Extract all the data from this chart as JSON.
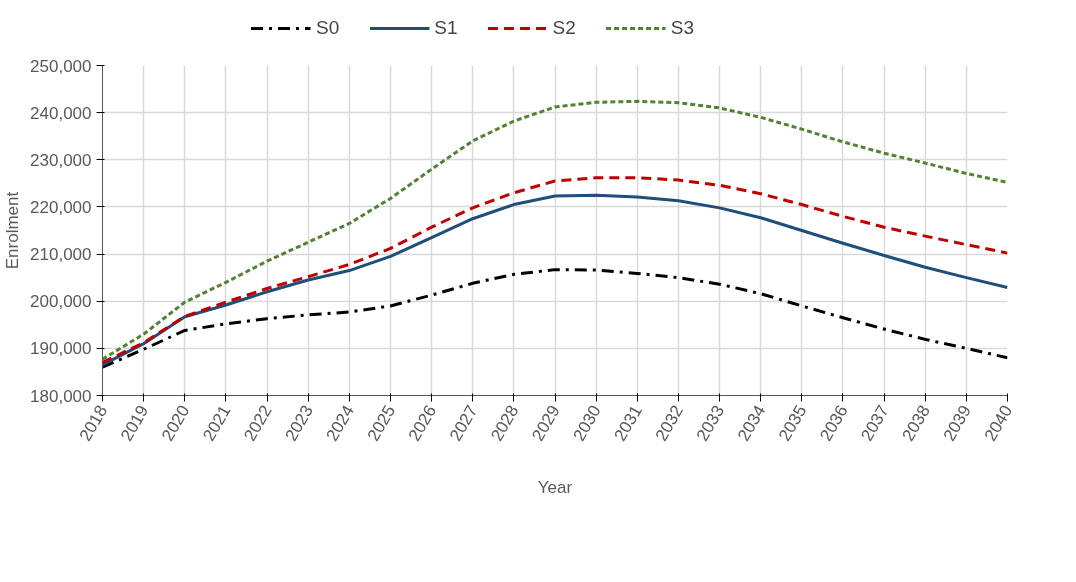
{
  "chart_data": {
    "type": "line",
    "xlabel": "Year",
    "ylabel": "Enrolment",
    "x": [
      2018,
      2019,
      2020,
      2021,
      2022,
      2023,
      2024,
      2025,
      2026,
      2027,
      2028,
      2029,
      2030,
      2031,
      2032,
      2033,
      2034,
      2035,
      2036,
      2037,
      2038,
      2039,
      2040
    ],
    "series": [
      {
        "name": "S0",
        "color": "#000000",
        "line_style": "dashdot",
        "values": [
          186000,
          189800,
          193800,
          195200,
          196300,
          197100,
          197700,
          199000,
          201300,
          203800,
          205700,
          206700,
          206600,
          205900,
          205000,
          203600,
          201600,
          199000,
          196500,
          194100,
          191900,
          190000,
          188000
        ]
      },
      {
        "name": "S1",
        "color": "#1f4e79",
        "line_style": "solid",
        "values": [
          186500,
          191000,
          196700,
          199200,
          202000,
          204500,
          206500,
          209500,
          213500,
          217500,
          220500,
          222300,
          222500,
          222100,
          221300,
          219800,
          217700,
          215000,
          212300,
          209700,
          207200,
          205000,
          202900
        ]
      },
      {
        "name": "S2",
        "color": "#c00000",
        "line_style": "dashed",
        "values": [
          187000,
          191200,
          196800,
          199800,
          202700,
          205200,
          207800,
          211200,
          215700,
          219800,
          223000,
          225500,
          226200,
          226200,
          225700,
          224600,
          222800,
          220500,
          218000,
          215700,
          213800,
          212000,
          210200
        ]
      },
      {
        "name": "S3",
        "color": "#548235",
        "line_style": "dotted",
        "values": [
          187700,
          193000,
          199800,
          204000,
          208500,
          212500,
          216500,
          221800,
          228000,
          234000,
          238200,
          241200,
          242200,
          242400,
          242100,
          241000,
          239000,
          236500,
          233800,
          231400,
          229300,
          227100,
          225200
        ]
      }
    ],
    "xlim": [
      2018,
      2040
    ],
    "xticks": [
      2018,
      2019,
      2020,
      2021,
      2022,
      2023,
      2024,
      2025,
      2026,
      2027,
      2028,
      2029,
      2030,
      2031,
      2032,
      2033,
      2034,
      2035,
      2036,
      2037,
      2038,
      2039,
      2040
    ],
    "ylim": [
      180000,
      250000
    ],
    "yticks": [
      {
        "value": 180000,
        "label": "180,000"
      },
      {
        "value": 190000,
        "label": "190,000"
      },
      {
        "value": 200000,
        "label": "200,000"
      },
      {
        "value": 210000,
        "label": "210,000"
      },
      {
        "value": 220000,
        "label": "220,000"
      },
      {
        "value": 230000,
        "label": "230,000"
      },
      {
        "value": 240000,
        "label": "240,000"
      },
      {
        "value": 250000,
        "label": "250,000"
      }
    ],
    "grid": true,
    "legend": "top",
    "marker": "none"
  }
}
